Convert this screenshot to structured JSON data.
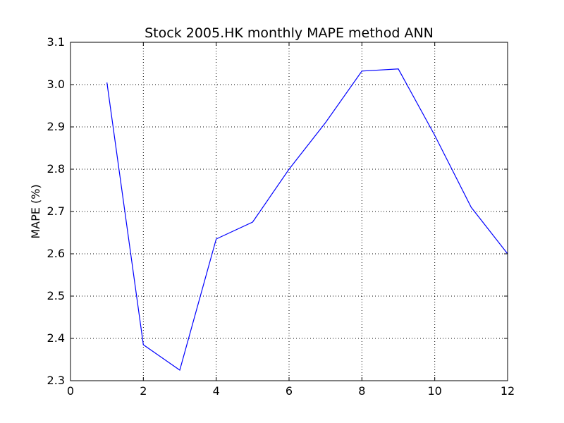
{
  "chart_data": {
    "type": "line",
    "title": "Stock 2005.HK monthly MAPE method ANN",
    "xlabel": "",
    "ylabel": "MAPE (%)",
    "xlim": [
      0,
      12
    ],
    "ylim": [
      2.3,
      3.1
    ],
    "xticks": [
      0,
      2,
      4,
      6,
      8,
      10,
      12
    ],
    "yticks": [
      2.3,
      2.4,
      2.5,
      2.6,
      2.7,
      2.8,
      2.9,
      3.0,
      3.1
    ],
    "xtick_labels": [
      "0",
      "2",
      "4",
      "6",
      "8",
      "10",
      "12"
    ],
    "ytick_labels": [
      "2.3",
      "2.4",
      "2.5",
      "2.6",
      "2.7",
      "2.8",
      "2.9",
      "3.0",
      "3.1"
    ],
    "grid": true,
    "series": [
      {
        "color": "#0000ff",
        "x": [
          1,
          2,
          3,
          4,
          5,
          6,
          7,
          8,
          9,
          10,
          11,
          12
        ],
        "y": [
          3.005,
          2.385,
          2.325,
          2.635,
          2.675,
          2.8,
          2.91,
          3.032,
          3.037,
          2.88,
          2.71,
          2.6
        ]
      }
    ]
  }
}
